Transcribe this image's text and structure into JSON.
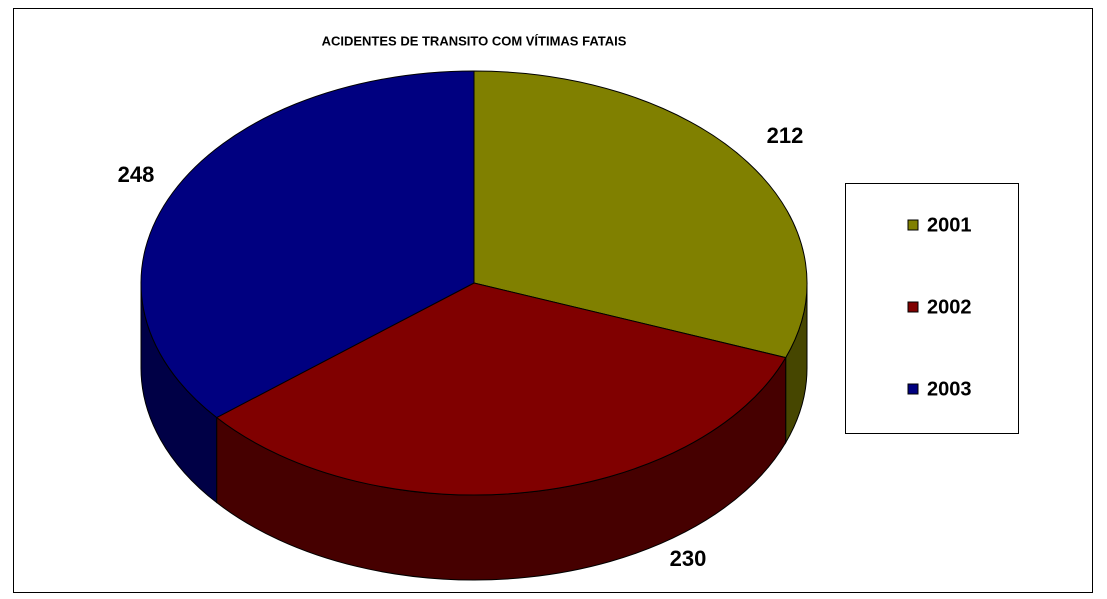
{
  "chart_data": {
    "type": "pie",
    "title": "ACIDENTES DE TRANSITO COM VÍTIMAS FATAIS",
    "categories": [
      "2001",
      "2002",
      "2003"
    ],
    "values": [
      212,
      230,
      248
    ],
    "colors": [
      "#808000",
      "#800000",
      "#000080"
    ],
    "legend": "right"
  }
}
